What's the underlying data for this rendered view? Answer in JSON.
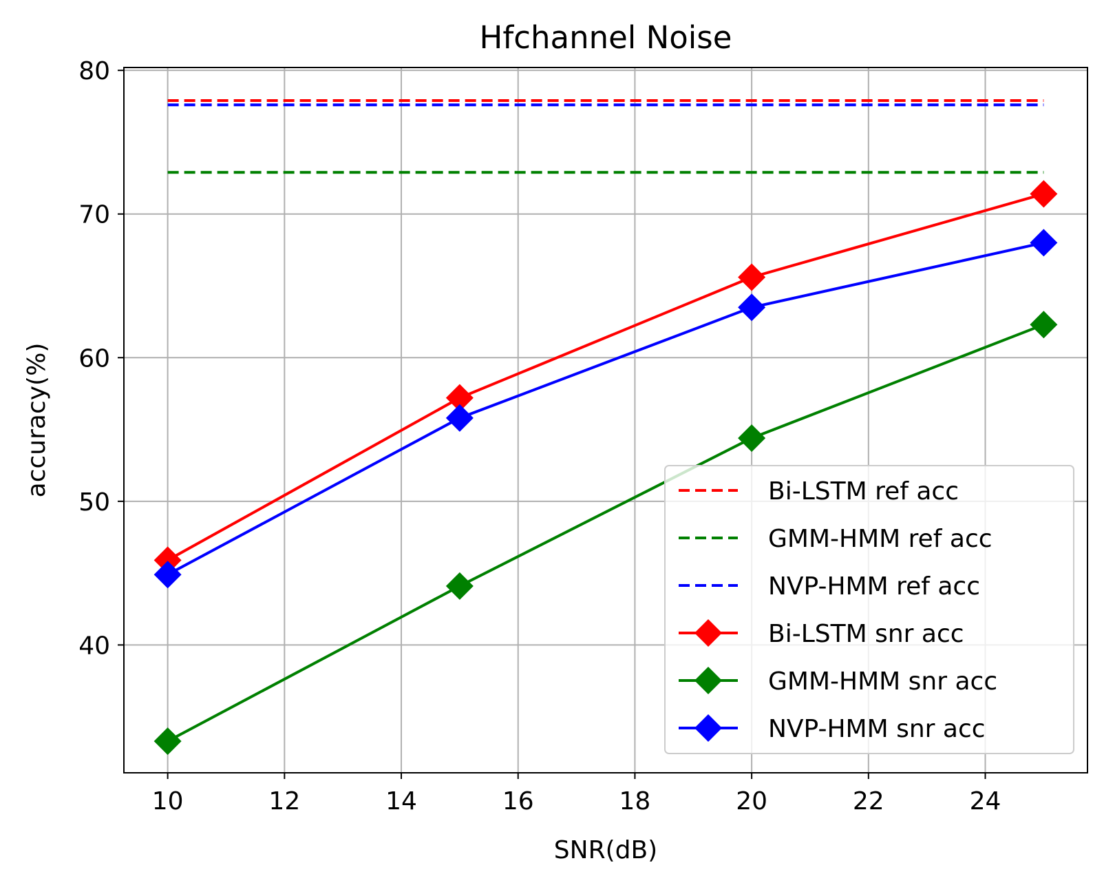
{
  "chart_data": {
    "type": "line",
    "title": "Hfchannel Noise",
    "xlabel": "SNR(dB)",
    "ylabel": "accuracy(%)",
    "x": [
      10,
      15,
      20,
      25
    ],
    "xlim": [
      9.25,
      25.75
    ],
    "ylim": [
      31.1,
      80.2
    ],
    "xticks": [
      10,
      12,
      14,
      16,
      18,
      20,
      22,
      24
    ],
    "yticks": [
      40,
      50,
      60,
      70,
      80
    ],
    "grid": true,
    "legend_position": "lower-right",
    "series": [
      {
        "name": "Bi-LSTM ref acc",
        "style": "dashed",
        "color": "#ff0000",
        "values": [
          77.9,
          77.9,
          77.9,
          77.9
        ]
      },
      {
        "name": "GMM-HMM ref acc",
        "style": "dashed",
        "color": "#008000",
        "values": [
          72.9,
          72.9,
          72.9,
          72.9
        ]
      },
      {
        "name": "NVP-HMM ref acc",
        "style": "dashed",
        "color": "#0000ff",
        "values": [
          77.6,
          77.6,
          77.6,
          77.6
        ]
      },
      {
        "name": "Bi-LSTM snr acc",
        "style": "solid",
        "marker": "diamond",
        "color": "#ff0000",
        "values": [
          45.9,
          57.2,
          65.6,
          71.4
        ]
      },
      {
        "name": "GMM-HMM snr acc",
        "style": "solid",
        "marker": "diamond",
        "color": "#008000",
        "values": [
          33.3,
          44.1,
          54.4,
          62.3
        ]
      },
      {
        "name": "NVP-HMM snr acc",
        "style": "solid",
        "marker": "diamond",
        "color": "#0000ff",
        "values": [
          44.9,
          55.8,
          63.5,
          68.0
        ]
      }
    ]
  }
}
